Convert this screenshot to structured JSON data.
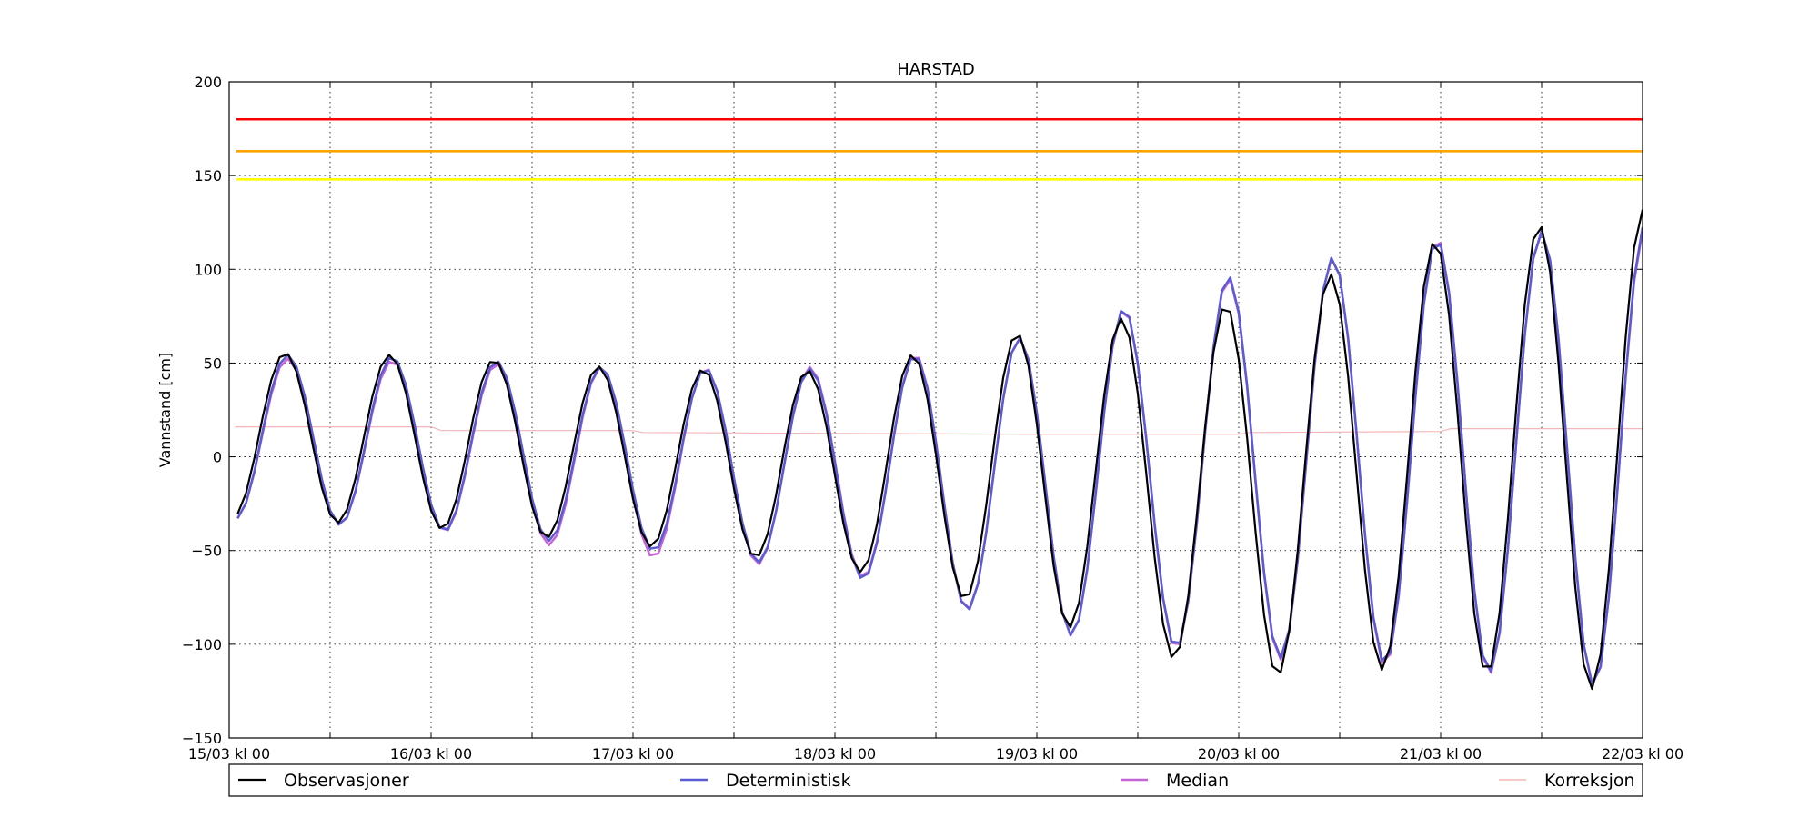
{
  "chart_data": {
    "type": "line",
    "title": "HARSTAD",
    "ylabel": "Vannstand [cm]",
    "xlabel": "",
    "x_unit": "days since 15/03 kl 00",
    "xlim": [
      0,
      7
    ],
    "ylim": [
      -150,
      200
    ],
    "yticks": [
      -150,
      -100,
      -50,
      0,
      50,
      100,
      150,
      200
    ],
    "ytick_labels": [
      "−150",
      "−100",
      "−50",
      "0",
      "50",
      "100",
      "150",
      "200"
    ],
    "xticks": [
      0,
      1,
      2,
      3,
      4,
      5,
      6,
      7
    ],
    "xtick_labels": [
      "15/03 kl 00",
      "16/03 kl 00",
      "17/03 kl 00",
      "18/03 kl 00",
      "19/03 kl 00",
      "20/03 kl 00",
      "21/03 kl 00",
      "22/03 kl 00"
    ],
    "grid": true,
    "legend_position": "bottom",
    "thresholds": [
      {
        "value": 180,
        "color": "#ff0000"
      },
      {
        "value": 163,
        "color": "#ffa500"
      },
      {
        "value": 148,
        "color": "#ffff00"
      }
    ],
    "tide": {
      "start_hour": 1,
      "end_hour": 168,
      "step_hours": 1,
      "note": "Semidiurnal tide, period ~12.42 h; amplitude/mean anchors below (day, cm)"
    },
    "series": [
      {
        "name": "Observasjoner",
        "color": "#000000",
        "width": 2.2,
        "amplitude": [
          [
            0,
            44
          ],
          [
            1,
            46
          ],
          [
            2,
            47
          ],
          [
            3,
            52
          ],
          [
            4,
            77
          ],
          [
            5,
            100
          ],
          [
            6,
            114
          ],
          [
            7,
            130
          ]
        ],
        "mean": [
          [
            0,
            12
          ],
          [
            1,
            8
          ],
          [
            2,
            0
          ],
          [
            3,
            -6
          ],
          [
            4,
            -9
          ],
          [
            5,
            -18
          ],
          [
            6,
            2
          ],
          [
            7,
            2
          ]
        ],
        "phase": 0
      },
      {
        "name": "Deterministisk",
        "color": "#5b5bd6",
        "width": 2.5,
        "amplitude": [
          [
            0,
            44
          ],
          [
            1,
            46
          ],
          [
            2,
            48
          ],
          [
            3,
            54
          ],
          [
            4,
            79
          ],
          [
            5,
            102
          ],
          [
            6,
            114
          ],
          [
            7,
            125
          ]
        ],
        "mean": [
          [
            0,
            11
          ],
          [
            1,
            7
          ],
          [
            2,
            -1
          ],
          [
            3,
            -7
          ],
          [
            4,
            -14
          ],
          [
            5,
            -4
          ],
          [
            6,
            2
          ],
          [
            7,
            0
          ]
        ],
        "phase": 0.012
      },
      {
        "name": "Median",
        "color": "#c464d6",
        "width": 2.5,
        "amplitude": [
          [
            0,
            43
          ],
          [
            1,
            45
          ],
          [
            2,
            50
          ],
          [
            3,
            54
          ],
          [
            4,
            79
          ],
          [
            5,
            102
          ],
          [
            6,
            115
          ],
          [
            7,
            124
          ]
        ],
        "mean": [
          [
            0,
            10
          ],
          [
            1,
            6
          ],
          [
            2,
            -3
          ],
          [
            3,
            -6
          ],
          [
            4,
            -14
          ],
          [
            5,
            -5
          ],
          [
            6,
            2
          ],
          [
            7,
            -1
          ]
        ],
        "phase": 0.012
      },
      {
        "name": "Korreksjon",
        "color": "#f4b6b6",
        "width": 1.2,
        "points": [
          [
            0.03,
            16
          ],
          [
            1.0,
            16
          ],
          [
            1.05,
            14
          ],
          [
            2.0,
            14
          ],
          [
            2.05,
            13
          ],
          [
            3.0,
            12.5
          ],
          [
            4.0,
            12
          ],
          [
            5.0,
            12
          ],
          [
            5.05,
            13
          ],
          [
            6.0,
            13.5
          ],
          [
            6.05,
            15
          ],
          [
            7.0,
            15
          ]
        ]
      }
    ]
  }
}
